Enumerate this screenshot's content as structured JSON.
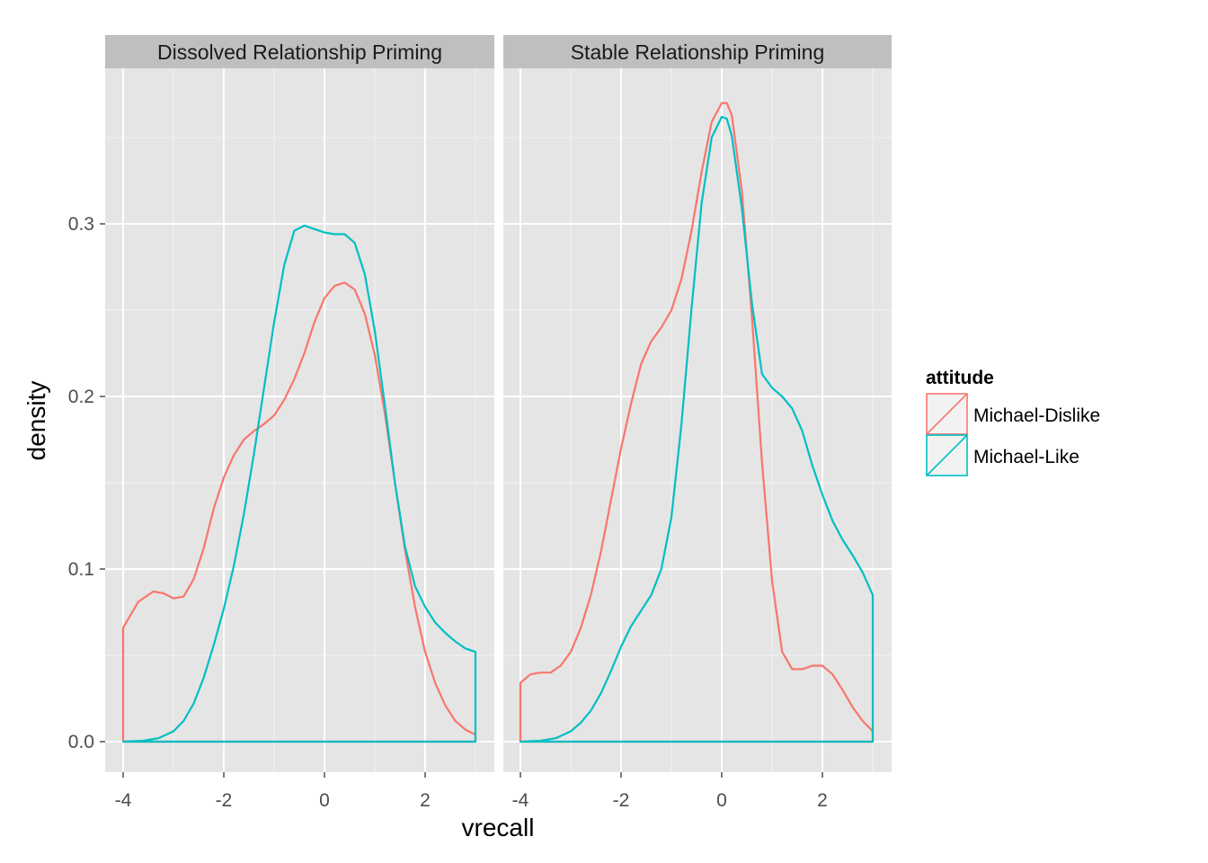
{
  "chart_data": {
    "type": "line",
    "subtype": "density",
    "xlabel": "vrecall",
    "ylabel": "density",
    "xlim": [
      -4,
      3
    ],
    "ylim": [
      0,
      0.37
    ],
    "x_ticks": [
      -4,
      -2,
      0,
      2
    ],
    "x_tick_labels": [
      "-4",
      "-2",
      "0",
      "2"
    ],
    "y_ticks": [
      0,
      0.1,
      0.2,
      0.3
    ],
    "y_tick_labels": [
      "0.0",
      "0.1",
      "0.2",
      "0.3"
    ],
    "grid": true,
    "legend": {
      "title": "attitude",
      "position": "right",
      "entries": [
        {
          "name": "Michael-Dislike",
          "color": "#F8766D"
        },
        {
          "name": "Michael-Like",
          "color": "#00BFC4"
        }
      ]
    },
    "panels": [
      {
        "title": "Dissolved Relationship Priming",
        "series": [
          {
            "name": "Michael-Dislike",
            "color": "#F8766D",
            "x": [
              -4.0,
              -3.7,
              -3.4,
              -3.2,
              -3.0,
              -2.8,
              -2.6,
              -2.4,
              -2.2,
              -2.0,
              -1.8,
              -1.6,
              -1.4,
              -1.2,
              -1.0,
              -0.8,
              -0.6,
              -0.4,
              -0.2,
              0.0,
              0.2,
              0.4,
              0.6,
              0.8,
              1.0,
              1.2,
              1.4,
              1.6,
              1.8,
              2.0,
              2.2,
              2.4,
              2.6,
              2.8,
              3.0
            ],
            "y": [
              0.066,
              0.081,
              0.087,
              0.086,
              0.083,
              0.084,
              0.094,
              0.112,
              0.135,
              0.153,
              0.166,
              0.175,
              0.18,
              0.184,
              0.189,
              0.198,
              0.21,
              0.225,
              0.243,
              0.257,
              0.264,
              0.266,
              0.262,
              0.248,
              0.224,
              0.19,
              0.15,
              0.111,
              0.078,
              0.052,
              0.034,
              0.021,
              0.012,
              0.007,
              0.004
            ]
          },
          {
            "name": "Michael-Like",
            "color": "#00BFC4",
            "x": [
              -4.0,
              -3.6,
              -3.3,
              -3.0,
              -2.8,
              -2.6,
              -2.4,
              -2.2,
              -2.0,
              -1.8,
              -1.6,
              -1.4,
              -1.2,
              -1.0,
              -0.8,
              -0.6,
              -0.4,
              -0.2,
              0.0,
              0.2,
              0.4,
              0.6,
              0.8,
              1.0,
              1.2,
              1.4,
              1.6,
              1.8,
              2.0,
              2.2,
              2.4,
              2.6,
              2.8,
              3.0
            ],
            "y": [
              0.0,
              0.0005,
              0.002,
              0.006,
              0.012,
              0.022,
              0.037,
              0.056,
              0.077,
              0.102,
              0.132,
              0.167,
              0.205,
              0.243,
              0.276,
              0.296,
              0.299,
              0.297,
              0.295,
              0.294,
              0.294,
              0.289,
              0.271,
              0.238,
              0.195,
              0.15,
              0.113,
              0.09,
              0.078,
              0.069,
              0.063,
              0.058,
              0.054,
              0.052
            ]
          }
        ]
      },
      {
        "title": "Stable Relationship Priming",
        "series": [
          {
            "name": "Michael-Dislike",
            "color": "#F8766D",
            "x": [
              -4.0,
              -3.8,
              -3.6,
              -3.4,
              -3.2,
              -3.0,
              -2.8,
              -2.6,
              -2.4,
              -2.2,
              -2.0,
              -1.8,
              -1.6,
              -1.4,
              -1.2,
              -1.0,
              -0.8,
              -0.6,
              -0.4,
              -0.2,
              0.0,
              0.1,
              0.2,
              0.4,
              0.6,
              0.8,
              1.0,
              1.2,
              1.4,
              1.6,
              1.8,
              2.0,
              2.2,
              2.4,
              2.6,
              2.8,
              3.0
            ],
            "y": [
              0.034,
              0.039,
              0.04,
              0.04,
              0.044,
              0.052,
              0.066,
              0.085,
              0.11,
              0.14,
              0.17,
              0.196,
              0.219,
              0.232,
              0.24,
              0.25,
              0.268,
              0.296,
              0.33,
              0.359,
              0.37,
              0.37,
              0.363,
              0.319,
              0.246,
              0.162,
              0.093,
              0.052,
              0.042,
              0.042,
              0.044,
              0.044,
              0.039,
              0.03,
              0.02,
              0.012,
              0.006
            ]
          },
          {
            "name": "Michael-Like",
            "color": "#00BFC4",
            "x": [
              -4.0,
              -3.6,
              -3.3,
              -3.0,
              -2.8,
              -2.6,
              -2.4,
              -2.2,
              -2.0,
              -1.8,
              -1.6,
              -1.4,
              -1.2,
              -1.0,
              -0.8,
              -0.6,
              -0.4,
              -0.2,
              0.0,
              0.1,
              0.2,
              0.4,
              0.6,
              0.8,
              1.0,
              1.2,
              1.4,
              1.6,
              1.8,
              2.0,
              2.2,
              2.4,
              2.6,
              2.8,
              3.0
            ],
            "y": [
              0.0,
              0.0005,
              0.002,
              0.006,
              0.011,
              0.018,
              0.028,
              0.041,
              0.055,
              0.067,
              0.076,
              0.085,
              0.1,
              0.13,
              0.184,
              0.251,
              0.312,
              0.35,
              0.362,
              0.361,
              0.351,
              0.309,
              0.254,
              0.213,
              0.205,
              0.2,
              0.193,
              0.18,
              0.16,
              0.143,
              0.128,
              0.117,
              0.108,
              0.098,
              0.085
            ]
          }
        ]
      }
    ]
  }
}
